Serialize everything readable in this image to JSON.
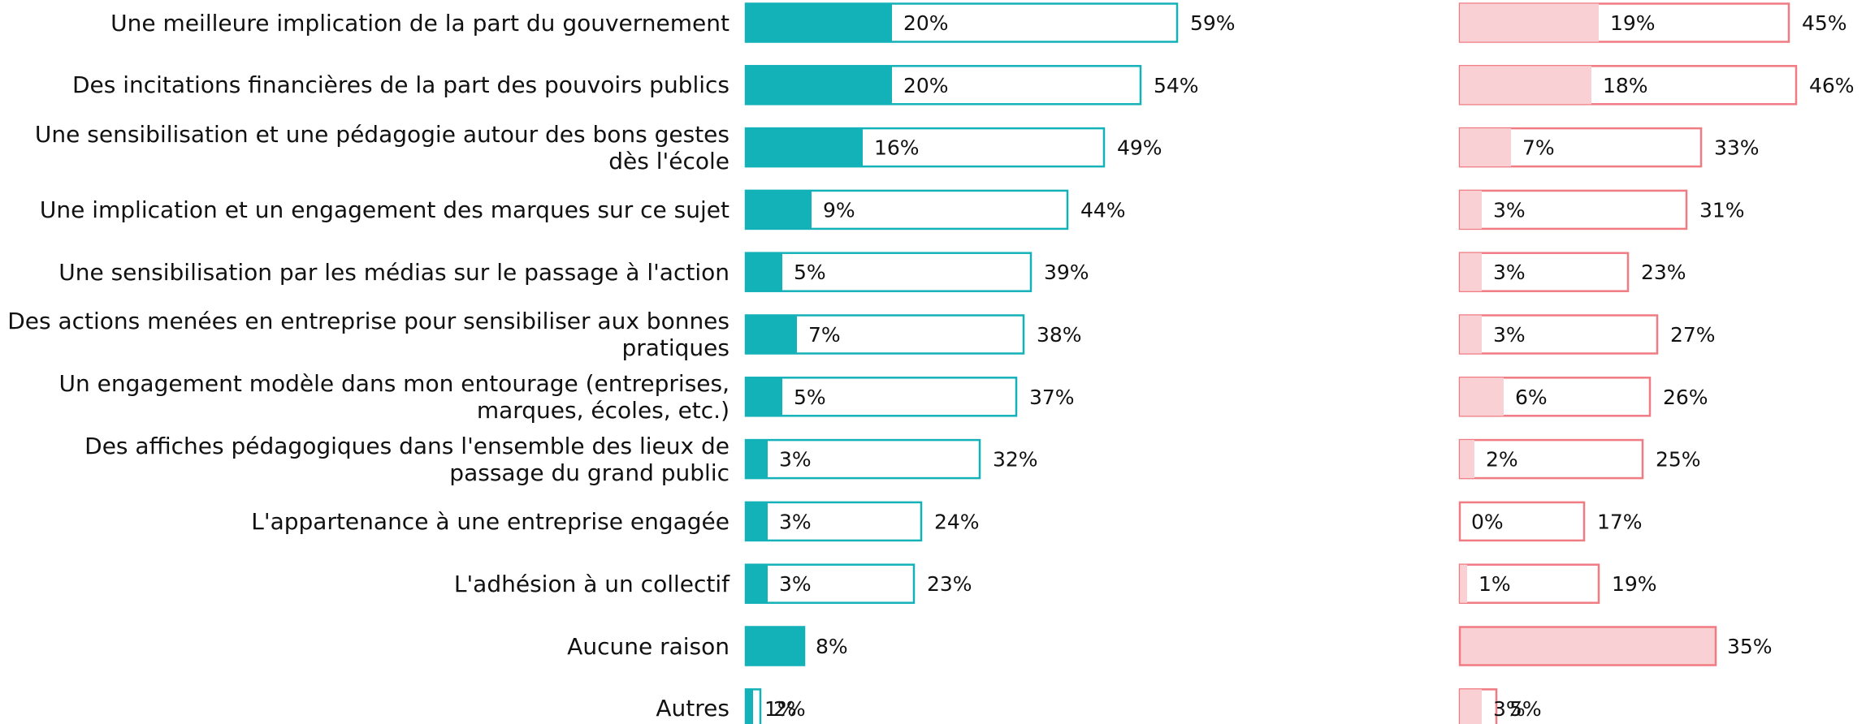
{
  "chart_data": [
    {
      "type": "hbar-overlay",
      "categories": [
        "Une meilleure implication de la part du gouvernement",
        "Des incitations financières de la part des pouvoirs publics",
        "Une sensibilisation et une pédagogie autour des bons gestes dès l'école",
        "Une implication et un engagement des marques sur ce sujet",
        "Une sensibilisation par les médias sur le passage à l'action",
        "Des actions menées en entreprise pour sensibiliser aux bonnes pratiques",
        "Un engagement modèle dans mon entourage (entreprises, marques, écoles, etc.)",
        "Des affiches pédagogiques dans l'ensemble des lieux de passage du grand public",
        "L'appartenance à une entreprise engagée",
        "L'adhésion à un collectif",
        "Aucune raison",
        "Autres"
      ],
      "xlim": [
        0,
        60
      ],
      "series": [
        {
          "color": "#13b1b8",
          "values": [
            20,
            20,
            16,
            9,
            5,
            7,
            5,
            3,
            3,
            3,
            8,
            1
          ],
          "value_labels": [
            "20%",
            "20%",
            "16%",
            "9%",
            "5%",
            "7%",
            "5%",
            "3%",
            "3%",
            "3%",
            "8%",
            "1%"
          ]
        },
        {
          "color": "#13b1b8",
          "values": [
            59,
            54,
            49,
            44,
            39,
            38,
            37,
            32,
            24,
            23,
            null,
            2
          ],
          "value_labels": [
            "59%",
            "54%",
            "49%",
            "44%",
            "39%",
            "38%",
            "37%",
            "32%",
            "24%",
            "23%",
            null,
            "2%"
          ]
        }
      ]
    },
    {
      "type": "hbar-overlay",
      "xlim": [
        0,
        50
      ],
      "series": [
        {
          "color": "#f9d0d3",
          "values": [
            19,
            18,
            7,
            3,
            3,
            3,
            6,
            2,
            0,
            1,
            35,
            3
          ],
          "value_labels": [
            "19%",
            "18%",
            "7%",
            "3%",
            "3%",
            "3%",
            "6%",
            "2%",
            "0%",
            "1%",
            "35%",
            "3%"
          ]
        },
        {
          "color": "#f07b82",
          "values": [
            45,
            46,
            33,
            31,
            23,
            27,
            26,
            25,
            17,
            19,
            null,
            5
          ],
          "value_labels": [
            "45%",
            "46%",
            "33%",
            "31%",
            "23%",
            "27%",
            "26%",
            "25%",
            "17%",
            "19%",
            null,
            "5%"
          ]
        }
      ]
    }
  ]
}
